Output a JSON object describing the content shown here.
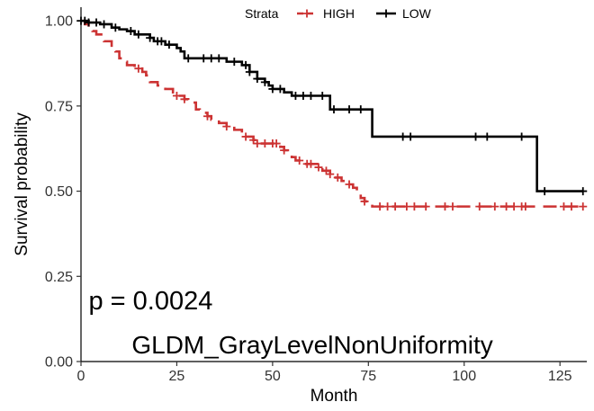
{
  "chart_data": {
    "type": "line",
    "subtype": "kaplan-meier step",
    "title": "",
    "xlabel": "Month",
    "ylabel": "Survival probability",
    "xlim": [
      0,
      132
    ],
    "ylim": [
      0,
      1.04
    ],
    "xticks": [
      0,
      25,
      50,
      75,
      100,
      125
    ],
    "yticks": [
      0.0,
      0.25,
      0.5,
      0.75,
      1.0
    ],
    "ytick_labels": [
      "0.00",
      "0.25",
      "0.50",
      "0.75",
      "1.00"
    ],
    "grid": false,
    "legend": {
      "title": "Strata",
      "position": "top",
      "entries": [
        "HIGH",
        "LOW"
      ]
    },
    "annotations": [
      {
        "text": "p = 0.0024",
        "x": 2,
        "y": 0.18
      },
      {
        "text": "GLDM_GrayLevelNonUniformity",
        "x": 13,
        "y": 0.04
      }
    ],
    "series": [
      {
        "name": "HIGH",
        "color": "#cc3333",
        "dashed": true,
        "steps": [
          [
            0,
            1.0
          ],
          [
            1,
            0.99
          ],
          [
            2,
            0.98
          ],
          [
            3,
            0.97
          ],
          [
            4,
            0.96
          ],
          [
            6,
            0.94
          ],
          [
            8,
            0.92
          ],
          [
            9,
            0.91
          ],
          [
            10,
            0.89
          ],
          [
            11,
            0.88
          ],
          [
            12,
            0.87
          ],
          [
            14,
            0.86
          ],
          [
            16,
            0.85
          ],
          [
            17,
            0.84
          ],
          [
            18,
            0.82
          ],
          [
            20,
            0.81
          ],
          [
            22,
            0.8
          ],
          [
            24,
            0.79
          ],
          [
            25,
            0.78
          ],
          [
            27,
            0.77
          ],
          [
            28,
            0.76
          ],
          [
            30,
            0.74
          ],
          [
            31,
            0.73
          ],
          [
            33,
            0.72
          ],
          [
            34,
            0.71
          ],
          [
            36,
            0.7
          ],
          [
            38,
            0.69
          ],
          [
            40,
            0.68
          ],
          [
            42,
            0.67
          ],
          [
            43,
            0.66
          ],
          [
            45,
            0.65
          ],
          [
            46,
            0.64
          ],
          [
            52,
            0.63
          ],
          [
            53,
            0.62
          ],
          [
            54,
            0.61
          ],
          [
            55,
            0.6
          ],
          [
            56,
            0.59
          ],
          [
            58,
            0.58
          ],
          [
            62,
            0.57
          ],
          [
            63,
            0.56
          ],
          [
            65,
            0.55
          ],
          [
            66,
            0.54
          ],
          [
            68,
            0.53
          ],
          [
            69,
            0.52
          ],
          [
            71,
            0.51
          ],
          [
            72,
            0.5
          ],
          [
            73,
            0.48
          ],
          [
            74,
            0.47
          ],
          [
            76,
            0.455
          ],
          [
            131,
            0.455
          ]
        ],
        "censored": [
          15,
          25,
          27,
          33,
          38,
          43,
          45,
          46,
          48,
          50,
          51,
          53,
          57,
          59,
          60,
          62,
          64,
          65,
          67,
          70,
          74,
          78,
          80,
          82,
          85,
          87,
          90,
          95,
          97,
          104,
          108,
          111,
          113,
          115,
          116,
          126,
          128,
          131
        ]
      },
      {
        "name": "LOW",
        "color": "#000000",
        "dashed": false,
        "steps": [
          [
            0,
            1.0
          ],
          [
            2,
            0.995
          ],
          [
            5,
            0.99
          ],
          [
            8,
            0.98
          ],
          [
            10,
            0.975
          ],
          [
            12,
            0.97
          ],
          [
            14,
            0.96
          ],
          [
            18,
            0.95
          ],
          [
            19,
            0.94
          ],
          [
            22,
            0.93
          ],
          [
            25,
            0.92
          ],
          [
            26,
            0.91
          ],
          [
            27,
            0.89
          ],
          [
            38,
            0.88
          ],
          [
            42,
            0.87
          ],
          [
            44,
            0.85
          ],
          [
            46,
            0.83
          ],
          [
            48,
            0.82
          ],
          [
            49,
            0.81
          ],
          [
            50,
            0.8
          ],
          [
            53,
            0.79
          ],
          [
            55,
            0.78
          ],
          [
            65,
            0.74
          ],
          [
            76,
            0.66
          ],
          [
            119,
            0.5
          ],
          [
            131,
            0.5
          ]
        ],
        "censored": [
          0,
          1,
          2,
          4,
          6,
          9,
          13,
          15,
          18,
          20,
          21,
          23,
          28,
          32,
          34,
          36,
          40,
          43,
          44,
          46,
          48,
          50,
          52,
          56,
          58,
          60,
          63,
          66,
          70,
          73,
          84,
          86,
          103,
          106,
          115,
          121,
          131
        ]
      }
    ]
  }
}
